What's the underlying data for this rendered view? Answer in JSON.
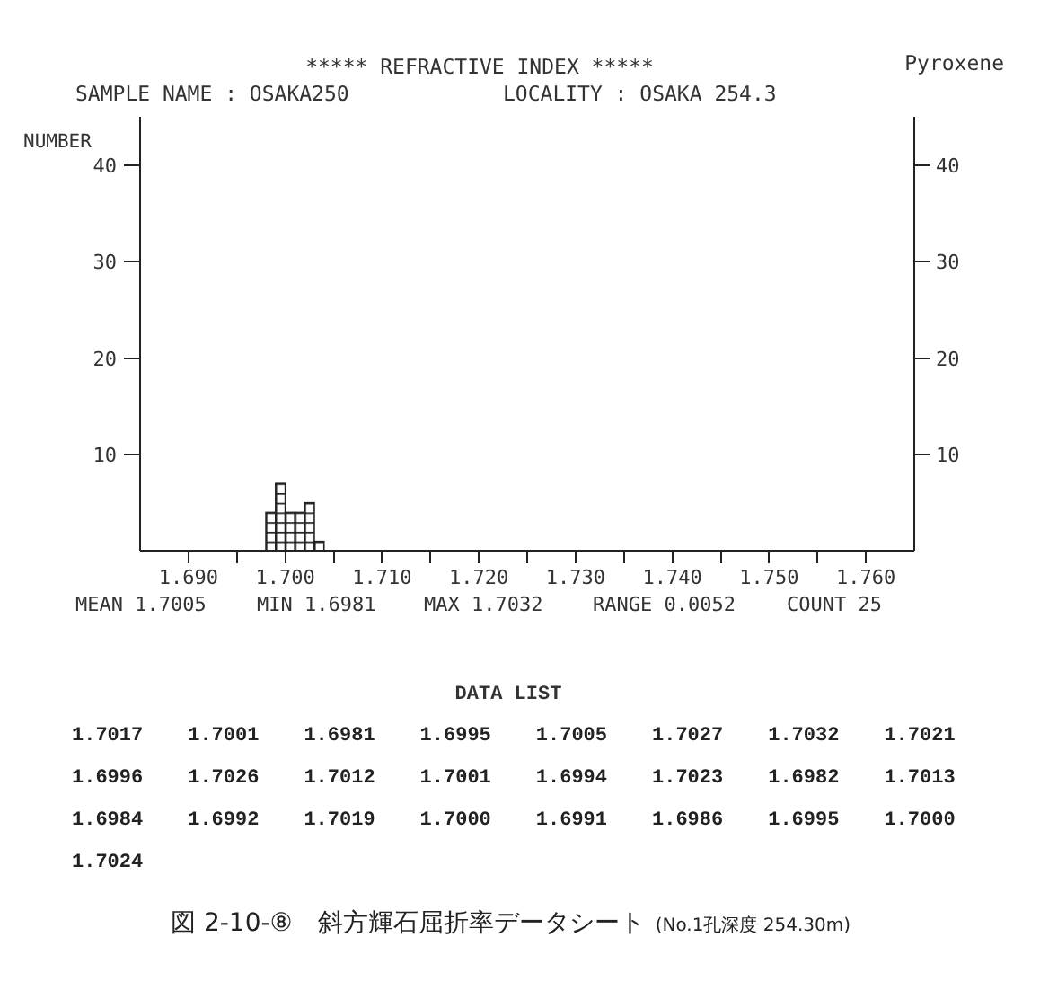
{
  "chart_data": {
    "type": "histogram",
    "title": "***** REFRACTIVE INDEX *****",
    "ylabel": "NUMBER",
    "bins": [
      1.698,
      1.699,
      1.7,
      1.701,
      1.702,
      1.703,
      1.704
    ],
    "values": [
      4,
      7,
      4,
      4,
      5,
      1
    ],
    "xlim": [
      1.685,
      1.765
    ],
    "xticks": [
      {
        "value": 1.69,
        "label": "1.690"
      },
      {
        "value": 1.695,
        "label": null
      },
      {
        "value": 1.7,
        "label": "1.700"
      },
      {
        "value": 1.705,
        "label": null
      },
      {
        "value": 1.71,
        "label": "1.710"
      },
      {
        "value": 1.715,
        "label": null
      },
      {
        "value": 1.72,
        "label": "1.720"
      },
      {
        "value": 1.725,
        "label": null
      },
      {
        "value": 1.73,
        "label": "1.730"
      },
      {
        "value": 1.735,
        "label": null
      },
      {
        "value": 1.74,
        "label": "1.740"
      },
      {
        "value": 1.745,
        "label": null
      },
      {
        "value": 1.75,
        "label": "1.750"
      },
      {
        "value": 1.755,
        "label": null
      },
      {
        "value": 1.76,
        "label": "1.760"
      }
    ],
    "ylim": [
      0,
      45
    ],
    "yticks": [
      10,
      20,
      30,
      40
    ],
    "y2lim": [
      0,
      45
    ],
    "y2ticks": [
      10,
      20,
      30,
      40
    ],
    "annotations": [
      "SAMPLE NAME : OSAKA250",
      "LOCALITY : OSAKA 254.3",
      "Pyroxene",
      "MEAN 1.7005",
      "MIN 1.6981",
      "MAX 1.7032",
      "RANGE 0.0052",
      "COUNT 25",
      "DATA LIST",
      "1.7017",
      "1.7001",
      "1.6981",
      "1.6995",
      "1.7005",
      "1.7027",
      "1.7032",
      "1.7021",
      "1.6996",
      "1.7026",
      "1.7012",
      "1.7001",
      "1.6994",
      "1.7023",
      "1.6982",
      "1.7013",
      "1.6984",
      "1.6992",
      "1.7019",
      "1.7000",
      "1.6991",
      "1.6986",
      "1.6995",
      "1.7000",
      "1.7024",
      "図 2-10-⑧　斜方輝石屈折率データシート",
      "(No.1孔深度 254.30m)"
    ]
  }
}
